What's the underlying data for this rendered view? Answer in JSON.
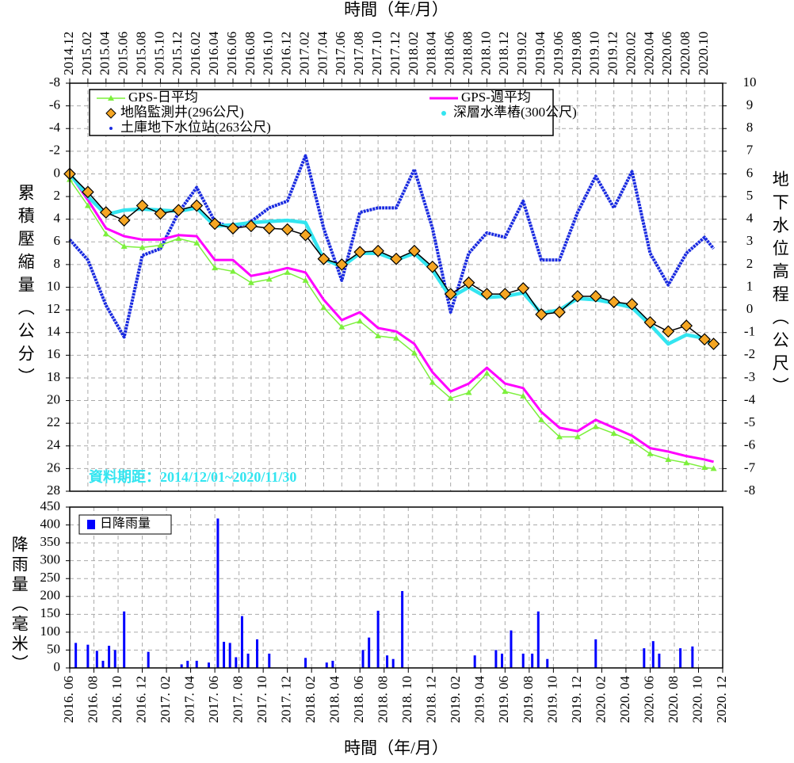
{
  "chart_data": [
    {
      "type": "line",
      "x_label": "時間（年/月）",
      "y_label": "累積壓縮量（公分）",
      "y2_label": "地下水位高程（公尺）",
      "annotation": "資料期距：2014/12/01~2020/11/30",
      "annotation_color": "#33e5f0",
      "legend": "top-left",
      "grid": true,
      "y_reversed": true,
      "xlim": [
        "2014.12",
        "2020.12"
      ],
      "xticks": [
        "2014.12",
        "2015.02",
        "2015.04",
        "2015.06",
        "2015.08",
        "2015.10",
        "2015.12",
        "2016.02",
        "2016.04",
        "2016.06",
        "2016.08",
        "2016.10",
        "2016.12",
        "2017.02",
        "2017.04",
        "2017.06",
        "2017.08",
        "2017.10",
        "2017.12",
        "2018.02",
        "2018.04",
        "2018.06",
        "2018.08",
        "2018.10",
        "2018.12",
        "2019.02",
        "2019.04",
        "2019.06",
        "2019.08",
        "2019.10",
        "2019.12",
        "2020.02",
        "2020.04",
        "2020.06",
        "2020.08",
        "2020.10"
      ],
      "ylim": [
        -8,
        28
      ],
      "yticks": [
        -8,
        -6,
        -4,
        -2,
        0,
        2,
        4,
        6,
        8,
        10,
        12,
        14,
        16,
        18,
        20,
        22,
        24,
        26,
        28
      ],
      "y2lim": [
        -8,
        10
      ],
      "y2ticks": [
        -8,
        -7,
        -6,
        -5,
        -4,
        -3,
        -2,
        -1,
        0,
        1,
        2,
        3,
        4,
        5,
        6,
        7,
        8,
        9,
        10
      ],
      "x": [
        "2014.12",
        "2015.02",
        "2015.04",
        "2015.06",
        "2015.08",
        "2015.10",
        "2015.12",
        "2016.02",
        "2016.04",
        "2016.06",
        "2016.08",
        "2016.10",
        "2016.12",
        "2017.02",
        "2017.04",
        "2017.06",
        "2017.08",
        "2017.10",
        "2017.12",
        "2018.02",
        "2018.04",
        "2018.06",
        "2018.08",
        "2018.10",
        "2018.12",
        "2019.02",
        "2019.04",
        "2019.06",
        "2019.08",
        "2019.10",
        "2019.12",
        "2020.02",
        "2020.04",
        "2020.06",
        "2020.08",
        "2020.10",
        "2020.11"
      ],
      "series": [
        {
          "name": "GPS-日平均",
          "color": "#7cf03c",
          "marker": "triangle",
          "axis": "y",
          "values": [
            0.5,
            2.8,
            5.3,
            6.4,
            6.5,
            6.3,
            5.7,
            6.1,
            8.3,
            8.6,
            9.6,
            9.3,
            8.7,
            9.4,
            11.8,
            13.5,
            13.0,
            14.3,
            14.5,
            15.8,
            18.4,
            19.8,
            19.3,
            17.6,
            19.2,
            19.6,
            21.7,
            23.2,
            23.2,
            22.3,
            22.9,
            23.6,
            24.7,
            25.2,
            25.5,
            25.9,
            26.0
          ]
        },
        {
          "name": "GPS-週平均",
          "color": "#ff00ff",
          "marker": "none",
          "axis": "y",
          "values": [
            0,
            2.3,
            4.8,
            5.5,
            5.8,
            5.8,
            5.4,
            5.5,
            7.6,
            7.6,
            9.0,
            8.7,
            8.3,
            8.7,
            11.1,
            12.9,
            12.2,
            13.6,
            13.9,
            15.0,
            17.5,
            19.2,
            18.5,
            17.1,
            18.5,
            18.9,
            21.0,
            22.4,
            22.7,
            21.7,
            22.4,
            23.1,
            24.2,
            24.5,
            24.9,
            25.2,
            25.4
          ]
        },
        {
          "name": "地陷監測井(296公尺)",
          "color": "#f5a623",
          "marker": "diamond",
          "axis": "y",
          "values": [
            0,
            1.6,
            3.4,
            4.1,
            2.8,
            3.5,
            3.2,
            2.8,
            4.4,
            4.8,
            4.6,
            4.8,
            4.9,
            5.4,
            7.5,
            8.0,
            6.9,
            6.8,
            7.5,
            6.8,
            8.2,
            10.6,
            9.6,
            10.6,
            10.6,
            10.1,
            12.4,
            12.2,
            10.8,
            10.8,
            11.3,
            11.5,
            13.1,
            13.9,
            13.4,
            14.6,
            15.0
          ]
        },
        {
          "name": "深層水準樁(300公尺)",
          "color": "#33e5f0",
          "marker": "circle",
          "axis": "y",
          "values": [
            0,
            2.0,
            3.6,
            3.2,
            3.1,
            3.2,
            3.3,
            3.0,
            4.6,
            4.5,
            4.3,
            4.2,
            4.1,
            4.3,
            7.5,
            8.2,
            7.0,
            7.0,
            7.6,
            7.0,
            8.5,
            10.9,
            10.0,
            10.9,
            10.8,
            10.5,
            12.3,
            12.0,
            11.0,
            11.1,
            11.4,
            11.8,
            13.3,
            15.0,
            14.2,
            14.5,
            15.2
          ]
        },
        {
          "name": "土庫地下水位站(263公尺)",
          "color": "#1a2be0",
          "marker": "dot",
          "axis": "y2",
          "values": [
            3.1,
            2.2,
            0.2,
            -1.2,
            2.4,
            2.7,
            4.3,
            5.4,
            3.9,
            3.6,
            3.9,
            4.5,
            4.8,
            6.8,
            3.6,
            1.3,
            4.3,
            4.5,
            4.5,
            6.2,
            3.6,
            -0.1,
            2.5,
            3.4,
            3.2,
            4.8,
            2.2,
            2.2,
            4.3,
            5.9,
            4.5,
            6.1,
            2.5,
            1.1,
            2.5,
            3.2,
            2.7
          ]
        }
      ]
    },
    {
      "type": "bar",
      "x_label": "時間（年/月）",
      "y_label": "降雨量（毫米）",
      "legend": "top-left",
      "grid": true,
      "xlim": [
        "2016.06",
        "2020.12"
      ],
      "xticks": [
        "2016. 06",
        "2016. 08",
        "2016. 10",
        "2016. 12",
        "2017. 02",
        "2017. 04",
        "2017. 06",
        "2017. 08",
        "2017. 10",
        "2017. 12",
        "2018. 02",
        "2018. 04",
        "2018. 06",
        "2018. 08",
        "2018. 10",
        "2018. 12",
        "2019. 02",
        "2019. 04",
        "2019. 06",
        "2019. 08",
        "2019. 10",
        "2019. 12",
        "2020. 02",
        "2020. 04",
        "2020. 06",
        "2020. 08",
        "2020. 10",
        "2020. 12"
      ],
      "ylim": [
        0,
        450
      ],
      "yticks": [
        0,
        50,
        100,
        150,
        200,
        250,
        300,
        350,
        400,
        450
      ],
      "series": [
        {
          "name": "日降雨量",
          "color": "#0000ff",
          "x": [
            "2016.06",
            "2016.07",
            "2016.08",
            "2016.08",
            "2016.09",
            "2016.09",
            "2016.10",
            "2016.12",
            "2017.03",
            "2017.03",
            "2017.04",
            "2017.05",
            "2017.06",
            "2017.06",
            "2017.07",
            "2017.07",
            "2017.08",
            "2017.08",
            "2017.09",
            "2017.10",
            "2018.01",
            "2018.03",
            "2018.03",
            "2018.06",
            "2018.06",
            "2018.07",
            "2018.08",
            "2018.08",
            "2018.09",
            "2019.03",
            "2019.05",
            "2019.05",
            "2019.06",
            "2019.07",
            "2019.08",
            "2019.08",
            "2019.09",
            "2020.01",
            "2020.05",
            "2020.06",
            "2020.06",
            "2020.08",
            "2020.09"
          ],
          "values": [
            70,
            65,
            48,
            20,
            62,
            50,
            158,
            45,
            10,
            20,
            20,
            15,
            418,
            73,
            70,
            30,
            145,
            40,
            80,
            40,
            28,
            15,
            20,
            50,
            85,
            160,
            35,
            25,
            215,
            35,
            50,
            40,
            105,
            40,
            40,
            158,
            25,
            80,
            55,
            75,
            40,
            55,
            60
          ]
        }
      ]
    }
  ]
}
